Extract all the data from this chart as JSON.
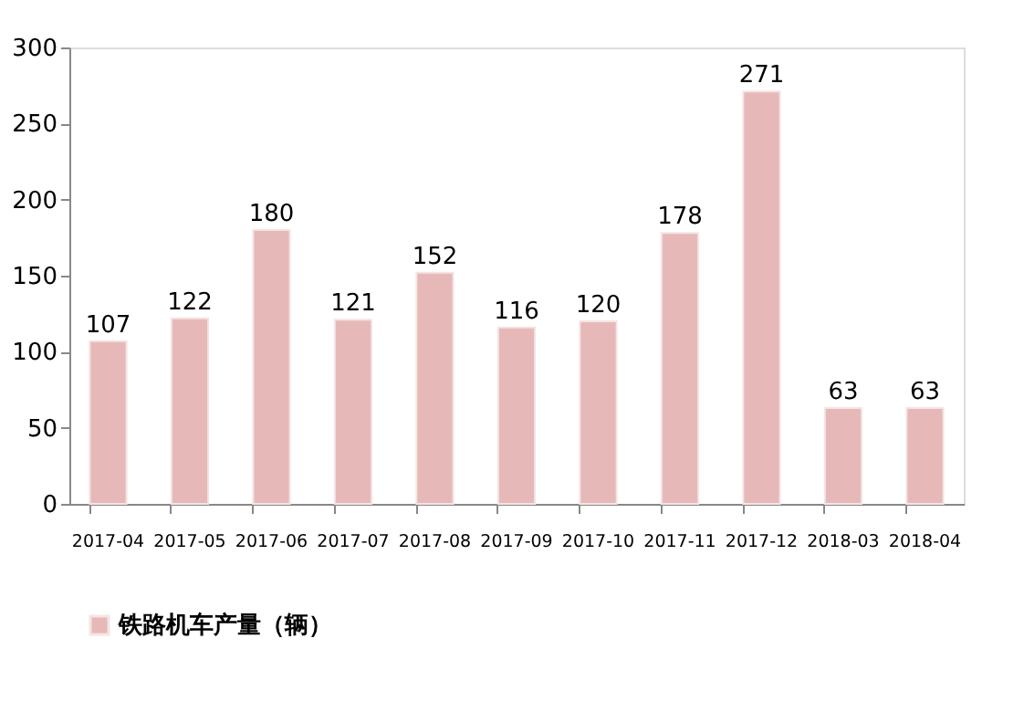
{
  "chart_data": {
    "type": "bar",
    "categories": [
      "2017-04",
      "2017-05",
      "2017-06",
      "2017-07",
      "2017-08",
      "2017-09",
      "2017-10",
      "2017-11",
      "2017-12",
      "2018-03",
      "2018-04"
    ],
    "series": [
      {
        "name": "铁路机车产量（辆）",
        "color": "#e6b9b8",
        "values": [
          107,
          122,
          180,
          121,
          152,
          116,
          120,
          178,
          271,
          63,
          63
        ]
      }
    ],
    "ylim": [
      0,
      300
    ],
    "yticks": [
      0,
      50,
      100,
      150,
      200,
      250,
      300
    ],
    "grid": false,
    "data_labels": true,
    "legend": "bottom left"
  }
}
